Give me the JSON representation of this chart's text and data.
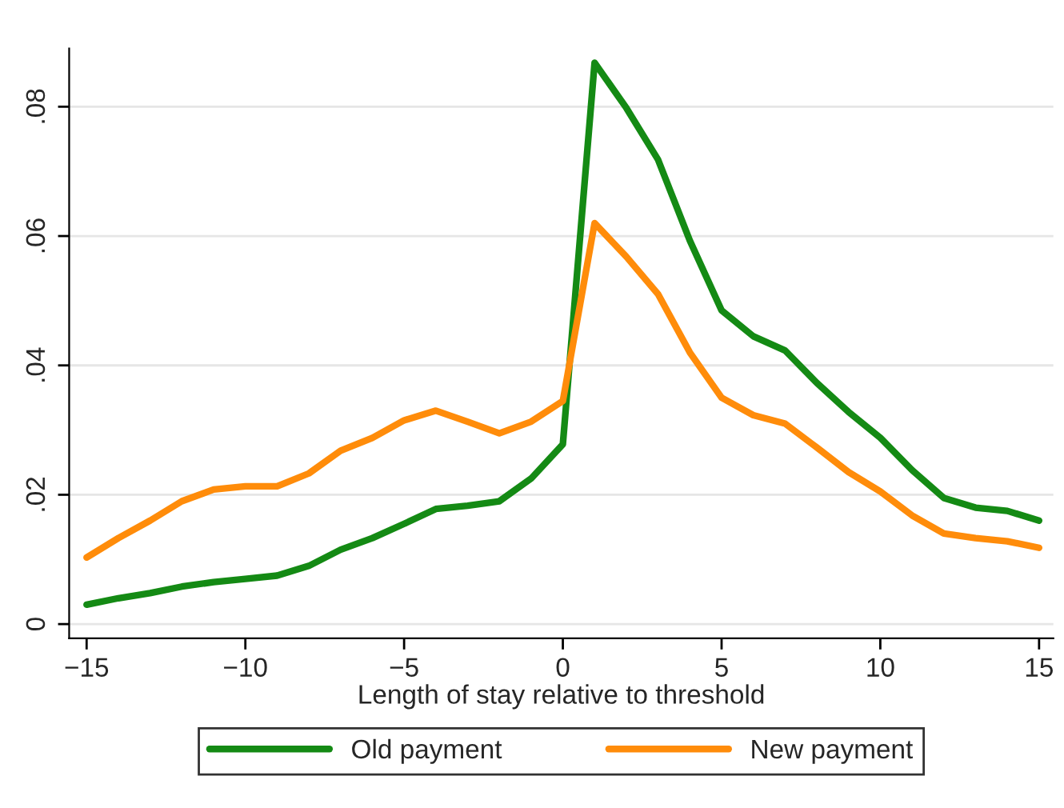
{
  "chart_data": {
    "type": "line",
    "xlabel": "Length of stay relative to threshold",
    "x": [
      -15,
      -14,
      -13,
      -12,
      -11,
      -10,
      -9,
      -8,
      -7,
      -6,
      -5,
      -4,
      -3,
      -2,
      -1,
      0,
      1,
      2,
      3,
      4,
      5,
      6,
      7,
      8,
      9,
      10,
      11,
      12,
      13,
      14,
      15
    ],
    "series": [
      {
        "name": "Old payment",
        "color": "#148a14",
        "values": [
          0.003,
          0.004,
          0.0048,
          0.0058,
          0.0065,
          0.007,
          0.0075,
          0.009,
          0.0115,
          0.0133,
          0.0155,
          0.0178,
          0.0183,
          0.019,
          0.0225,
          0.0278,
          0.0868,
          0.0798,
          0.0718,
          0.0593,
          0.0485,
          0.0445,
          0.0423,
          0.0373,
          0.0328,
          0.0288,
          0.0238,
          0.0195,
          0.018,
          0.0175,
          0.016
        ]
      },
      {
        "name": "New payment",
        "color": "#ff8c0a",
        "values": [
          0.0103,
          0.0133,
          0.016,
          0.019,
          0.0208,
          0.0213,
          0.0213,
          0.0233,
          0.0268,
          0.0288,
          0.0315,
          0.033,
          0.0313,
          0.0295,
          0.0313,
          0.0345,
          0.062,
          0.0568,
          0.051,
          0.042,
          0.035,
          0.0323,
          0.031,
          0.0273,
          0.0235,
          0.0205,
          0.0168,
          0.014,
          0.0133,
          0.0128,
          0.0118
        ]
      }
    ],
    "xlim": [
      -15.55,
      15.45
    ],
    "xticks": [
      {
        "value": -15,
        "label": "−15"
      },
      {
        "value": -10,
        "label": "−10"
      },
      {
        "value": -5,
        "label": "−5"
      },
      0,
      5,
      10,
      15
    ],
    "ylim": [
      -0.0022,
      0.089
    ],
    "yticks": [
      0,
      {
        "value": 0.02,
        "label": ".02"
      },
      {
        "value": 0.04,
        "label": ".04"
      },
      {
        "value": 0.06,
        "label": ".06"
      },
      {
        "value": 0.08,
        "label": ".08"
      }
    ],
    "grid": "y",
    "legend": "bottom",
    "marker": "none",
    "line_style": "solid"
  }
}
